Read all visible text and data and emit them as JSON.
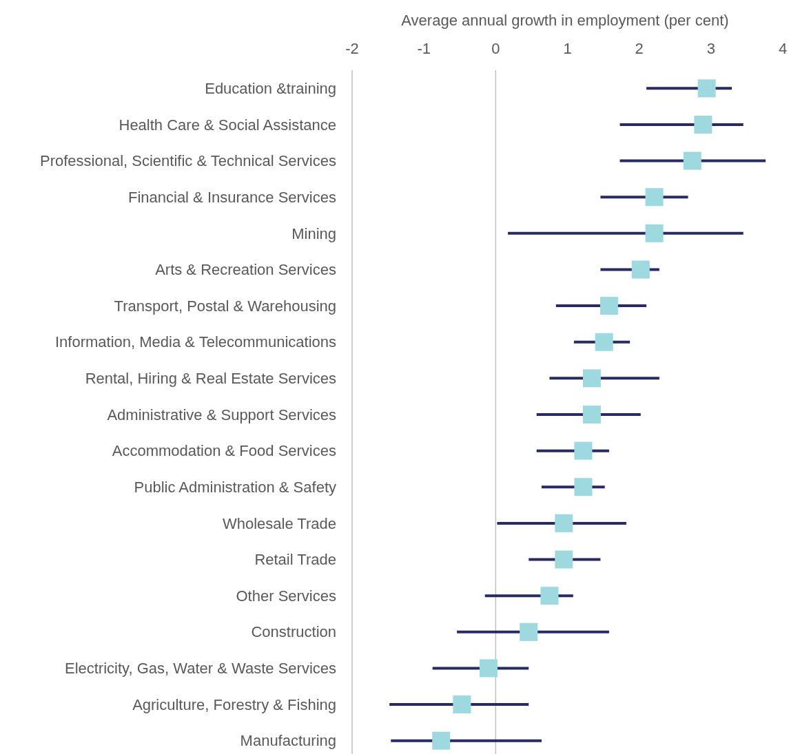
{
  "chart_data": {
    "type": "scatter",
    "orientation": "horizontal",
    "xlabel": "Average annual growth in employment (per cent)",
    "categories": [
      "Education &training",
      "Health Care & Social Assistance",
      "Professional, Scientific & Technical Services",
      "Financial & Insurance Services",
      "Mining",
      "Arts & Recreation Services",
      "Transport, Postal & Warehousing",
      "Information, Media & Telecommunications",
      "Rental, Hiring & Real Estate Services",
      "Administrative & Support Services",
      "Accommodation & Food Services",
      "Public Administration & Safety",
      "Wholesale Trade",
      "Retail Trade",
      "Other Services",
      "Construction",
      "Electricity, Gas, Water & Waste Services",
      "Agriculture, Forestry & Fishing",
      "Manufacturing"
    ],
    "series": [
      {
        "color": "#9dd9df",
        "values": [
          2.94,
          2.89,
          2.74,
          2.21,
          2.21,
          2.02,
          1.58,
          1.51,
          1.34,
          1.34,
          1.22,
          1.22,
          0.95,
          0.95,
          0.75,
          0.46,
          -0.1,
          -0.47,
          -0.76
        ],
        "errors": [
          [
            2.1,
            3.29
          ],
          [
            1.73,
            3.45
          ],
          [
            1.73,
            3.76
          ],
          [
            1.46,
            2.68
          ],
          [
            0.17,
            3.45
          ],
          [
            1.46,
            2.28
          ],
          [
            0.84,
            2.1
          ],
          [
            1.09,
            1.87
          ],
          [
            0.75,
            2.28
          ],
          [
            0.57,
            2.02
          ],
          [
            0.57,
            1.58
          ],
          [
            0.64,
            1.52
          ],
          [
            0.02,
            1.82
          ],
          [
            0.46,
            1.46
          ],
          [
            -0.15,
            1.08
          ],
          [
            -0.54,
            1.58
          ],
          [
            -0.88,
            0.46
          ],
          [
            -1.48,
            0.46
          ],
          [
            -1.46,
            0.64
          ]
        ]
      }
    ],
    "marker": "square",
    "xlim": [
      -2,
      4
    ],
    "xticks": [
      -2,
      -1,
      0,
      1,
      2,
      3,
      4
    ],
    "grid": false,
    "ref_lines": [
      {
        "axis": "x",
        "value": 0,
        "color": "#c0c0c0"
      }
    ]
  }
}
